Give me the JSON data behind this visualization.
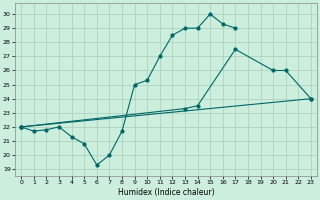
{
  "xlabel": "Humidex (Indice chaleur)",
  "bg_color": "#cceedd",
  "grid_color": "#aaccbb",
  "line_color": "#006666",
  "xlim": [
    -0.5,
    23.5
  ],
  "ylim": [
    18.5,
    30.8
  ],
  "yticks": [
    19,
    20,
    21,
    22,
    23,
    24,
    25,
    26,
    27,
    28,
    29,
    30
  ],
  "xticks": [
    0,
    1,
    2,
    3,
    4,
    5,
    6,
    7,
    8,
    9,
    10,
    11,
    12,
    13,
    14,
    15,
    16,
    17,
    18,
    19,
    20,
    21,
    22,
    23
  ],
  "line1_x": [
    0,
    1,
    2,
    3,
    4,
    5,
    6,
    7,
    8,
    9,
    10,
    11,
    12,
    13,
    14,
    15,
    16,
    17
  ],
  "line1_y": [
    22,
    21.7,
    21.8,
    22,
    21.3,
    20.8,
    19.3,
    20.0,
    21.7,
    25.0,
    25.3,
    27.0,
    28.5,
    29.0,
    29.0,
    30.0,
    29.3,
    29.0
  ],
  "line2_x": [
    0,
    13,
    14,
    17,
    20,
    21,
    23
  ],
  "line2_y": [
    22,
    23.3,
    23.5,
    27.5,
    26.0,
    26.0,
    24.0
  ],
  "line3_x": [
    0,
    23
  ],
  "line3_y": [
    22,
    24.0
  ]
}
